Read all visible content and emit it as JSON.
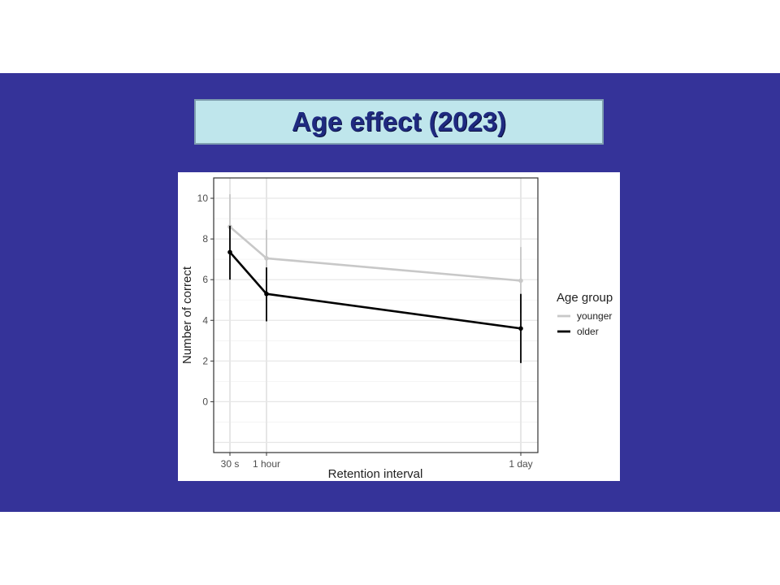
{
  "slide": {
    "title": "Age effect (2023)",
    "background_color": "#353399",
    "title_box_color": "#bfe6ec"
  },
  "chart_data": {
    "type": "line",
    "title": "",
    "xlabel": "Retention interval",
    "ylabel": "Number of correct",
    "x_ticks": [
      {
        "label": "30 s",
        "value": 0.5
      },
      {
        "label": "1 hour",
        "value": 60
      },
      {
        "label": "1 day",
        "value": 1440
      }
    ],
    "ylim": [
      -2.5,
      11
    ],
    "y_ticks": [
      0,
      2,
      4,
      6,
      8,
      10
    ],
    "grid": true,
    "legend": {
      "title": "Age group",
      "position": "right"
    },
    "series": [
      {
        "name": "younger",
        "color": "#c8c8c8",
        "points": [
          {
            "x": 0.5,
            "y": 8.6,
            "lo": 7.1,
            "hi": 10.2
          },
          {
            "x": 60,
            "y": 7.05,
            "lo": 5.65,
            "hi": 8.45
          },
          {
            "x": 1440,
            "y": 5.95,
            "lo": 4.35,
            "hi": 7.6
          }
        ]
      },
      {
        "name": "older",
        "color": "#000000",
        "points": [
          {
            "x": 0.5,
            "y": 7.35,
            "lo": 6.0,
            "hi": 8.65
          },
          {
            "x": 60,
            "y": 5.3,
            "lo": 3.95,
            "hi": 6.6
          },
          {
            "x": 1440,
            "y": 3.6,
            "lo": 1.9,
            "hi": 5.3
          }
        ]
      }
    ]
  }
}
